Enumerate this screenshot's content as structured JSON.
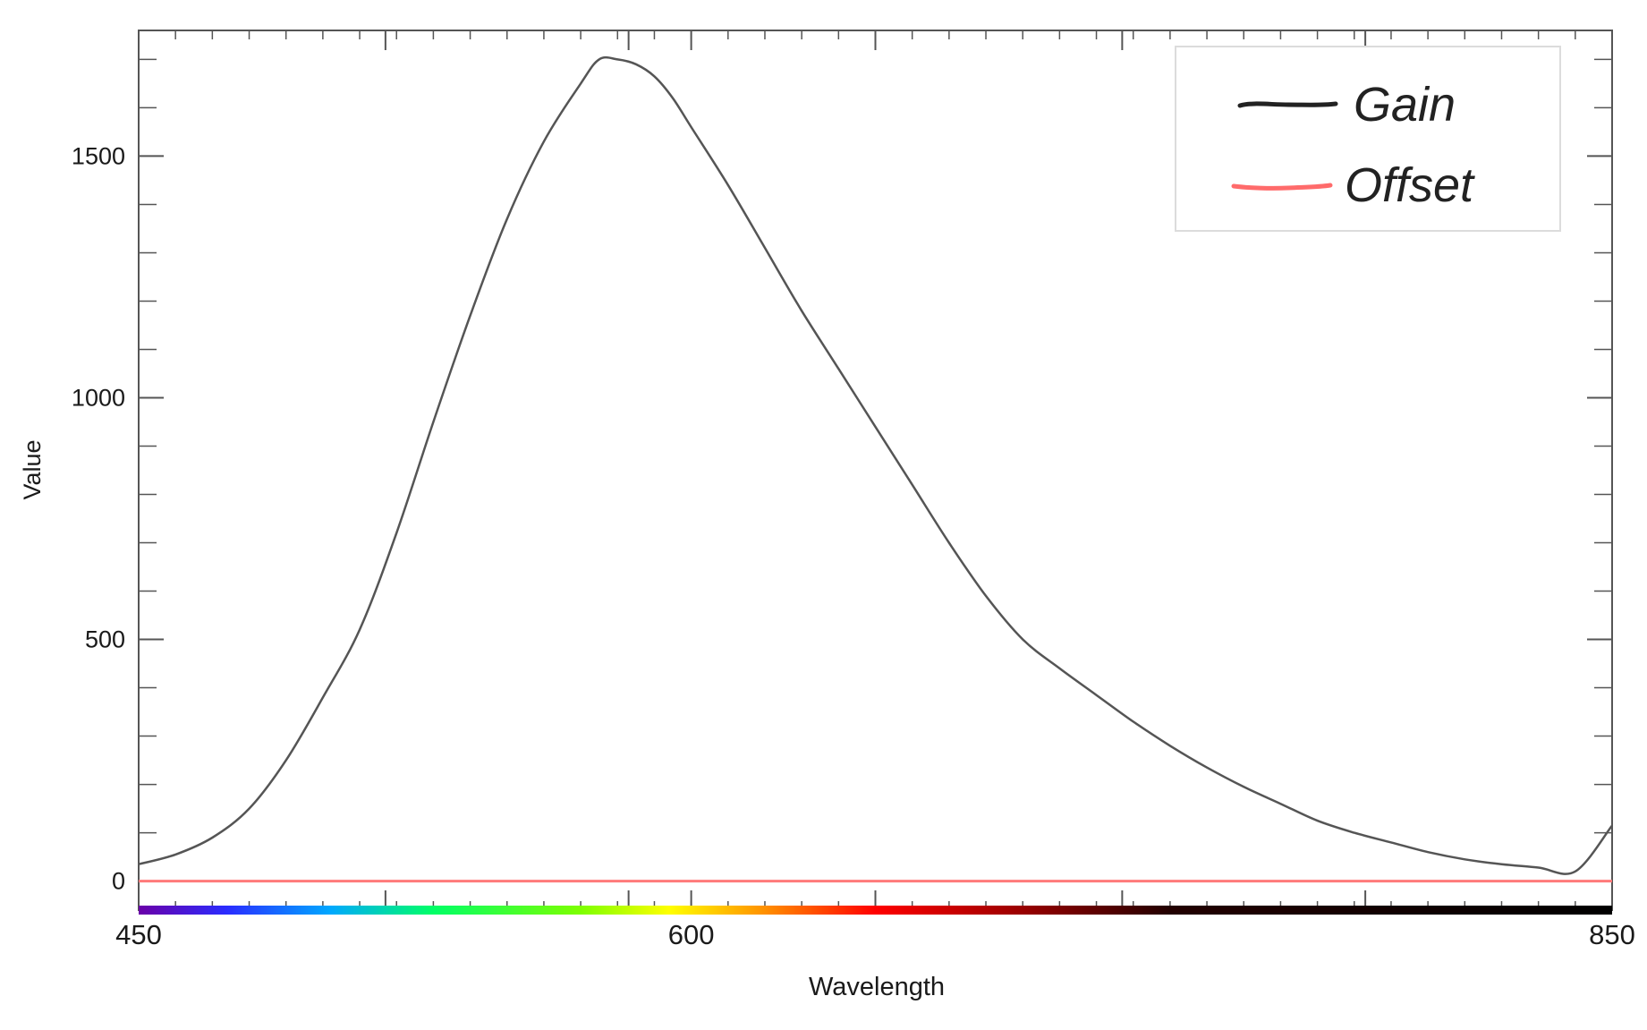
{
  "chart_data": {
    "type": "line",
    "xlabel": "Wavelength",
    "ylabel": "Value",
    "xlim": [
      450,
      850
    ],
    "ylim": [
      -60,
      1760
    ],
    "x_ticks": [
      {
        "value": 450,
        "label": "450"
      },
      {
        "value": 600,
        "label": "600"
      },
      {
        "value": 850,
        "label": "850"
      }
    ],
    "y_ticks": [
      {
        "value": 0,
        "label": "0"
      },
      {
        "value": 500,
        "label": "500"
      },
      {
        "value": 1000,
        "label": "1000"
      },
      {
        "value": 1500,
        "label": "1500"
      }
    ],
    "x_minor_step": 10,
    "y_minor_step": 100,
    "x_major_tick_values": [
      450,
      517,
      583,
      600,
      650,
      717,
      783,
      850
    ],
    "legend_position": "top-right",
    "grid": false,
    "spectrum_bar": true,
    "series": [
      {
        "name": "Gain",
        "color": "#555555",
        "x": [
          450,
          460,
          470,
          480,
          490,
          500,
          510,
          520,
          530,
          540,
          550,
          560,
          570,
          575,
          580,
          585,
          590,
          595,
          600,
          610,
          620,
          630,
          640,
          650,
          660,
          670,
          680,
          690,
          700,
          710,
          720,
          730,
          740,
          750,
          760,
          770,
          780,
          790,
          800,
          810,
          820,
          830,
          840,
          850
        ],
        "y": [
          35,
          55,
          90,
          150,
          250,
          380,
          520,
          720,
          950,
          1170,
          1370,
          1530,
          1650,
          1700,
          1700,
          1690,
          1665,
          1620,
          1560,
          1440,
          1310,
          1180,
          1060,
          940,
          820,
          700,
          590,
          500,
          440,
          385,
          330,
          280,
          235,
          195,
          160,
          125,
          100,
          80,
          60,
          45,
          35,
          28,
          20,
          115
        ]
      },
      {
        "name": "Offset",
        "color": "#ff7a7a",
        "x": [
          450,
          850
        ],
        "y": [
          0,
          0
        ]
      }
    ],
    "legend": [
      {
        "label": "Gain",
        "color": "#222222"
      },
      {
        "label": "Offset",
        "color": "#ff6b6b"
      }
    ]
  }
}
